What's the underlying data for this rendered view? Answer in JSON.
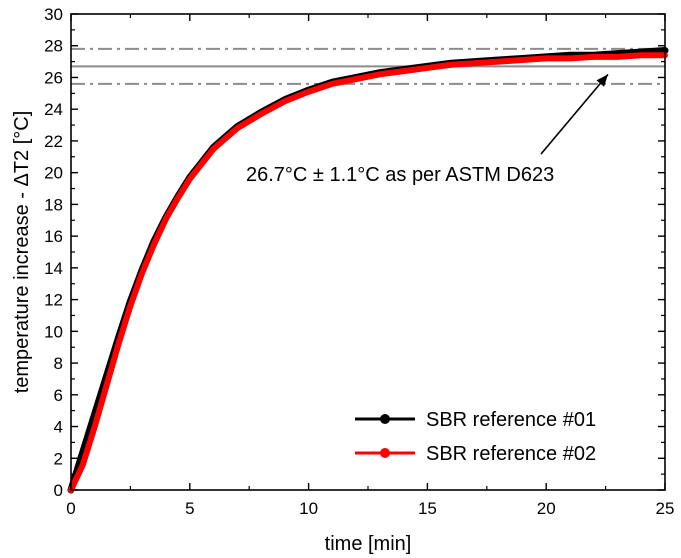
{
  "chart_data": {
    "type": "line",
    "xlabel": "time [min]",
    "ylabel": "temperature increase - ΔT2 [°C]",
    "xlim": [
      0,
      25
    ],
    "ylim": [
      0,
      30
    ],
    "xticks": [
      0,
      5,
      10,
      15,
      20,
      25
    ],
    "yticks": [
      0,
      2,
      4,
      6,
      8,
      10,
      12,
      14,
      16,
      18,
      20,
      22,
      24,
      26,
      28,
      30
    ],
    "grid": false,
    "legend_position": "bottom-right",
    "series": [
      {
        "name": "SBR reference #01",
        "color": "#000000",
        "x": [
          0,
          0.5,
          1,
          1.5,
          2,
          2.5,
          3,
          3.5,
          4,
          4.5,
          5,
          6,
          7,
          8,
          9,
          10,
          11,
          12,
          13,
          14,
          15,
          16,
          17,
          18,
          19,
          20,
          21,
          22,
          23,
          24,
          25
        ],
        "y": [
          0,
          2.4,
          4.8,
          7.2,
          9.6,
          11.9,
          13.9,
          15.7,
          17.2,
          18.5,
          19.7,
          21.6,
          22.9,
          23.8,
          24.6,
          25.2,
          25.7,
          26.0,
          26.3,
          26.5,
          26.7,
          26.9,
          27.0,
          27.1,
          27.2,
          27.3,
          27.4,
          27.4,
          27.5,
          27.6,
          27.7
        ]
      },
      {
        "name": "SBR reference #02",
        "color": "#ff0000",
        "x": [
          0,
          0.5,
          1,
          1.5,
          2,
          2.5,
          3,
          3.5,
          4,
          4.5,
          5,
          6,
          7,
          8,
          9,
          10,
          11,
          12,
          13,
          14,
          15,
          16,
          17,
          18,
          19,
          20,
          21,
          22,
          23,
          24,
          25
        ],
        "y": [
          0,
          1.6,
          4.0,
          6.6,
          9.2,
          11.6,
          13.7,
          15.5,
          17.1,
          18.4,
          19.6,
          21.5,
          22.8,
          23.7,
          24.5,
          25.1,
          25.6,
          25.9,
          26.2,
          26.4,
          26.6,
          26.8,
          26.9,
          27.0,
          27.1,
          27.2,
          27.2,
          27.3,
          27.3,
          27.4,
          27.4
        ]
      }
    ],
    "reference_lines": [
      {
        "y": 26.7,
        "style": "solid",
        "color": "#8c8c8c"
      },
      {
        "y": 27.8,
        "style": "dash-dot",
        "color": "#8c8c8c"
      },
      {
        "y": 25.6,
        "style": "dash-dot",
        "color": "#8c8c8c"
      }
    ],
    "annotation": {
      "text": "26.7°C ± 1.1°C as per ASTM D623",
      "target_x": 22.6,
      "target_y": 26.7
    }
  }
}
